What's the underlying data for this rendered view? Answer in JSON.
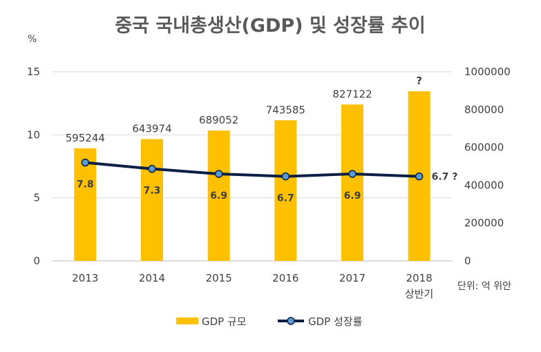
{
  "chart_data": {
    "type": "bar+line",
    "title": "중국 국내총생산(GDP) 및 성장률 추이",
    "left_axis_unit": "%",
    "right_axis_note": "단위: 억 위안",
    "categories": [
      {
        "year": "2013",
        "sub": ""
      },
      {
        "year": "2014",
        "sub": ""
      },
      {
        "year": "2015",
        "sub": ""
      },
      {
        "year": "2016",
        "sub": ""
      },
      {
        "year": "2017",
        "sub": ""
      },
      {
        "year": "2018",
        "sub": "상반기"
      }
    ],
    "left_axis": {
      "min": 0,
      "max": 15,
      "ticks": [
        "0",
        "5",
        "10",
        "15"
      ]
    },
    "right_axis": {
      "min": 0,
      "max": 1000000,
      "ticks": [
        "0",
        "200000",
        "400000",
        "600000",
        "800000",
        "1000000"
      ]
    },
    "series": [
      {
        "name": "GDP 규모",
        "kind": "bar",
        "axis": "right",
        "color": "#FFC000",
        "values": [
          595244,
          643974,
          689052,
          743585,
          827122,
          897000
        ],
        "labels": [
          "595244",
          "643974",
          "689052",
          "743585",
          "827122",
          "?"
        ]
      },
      {
        "name": "GDP 성장률",
        "kind": "line",
        "axis": "left",
        "color": "#0B1F44",
        "marker_color": "#5B9BD5",
        "values": [
          7.8,
          7.3,
          6.9,
          6.7,
          6.9,
          6.7
        ],
        "labels": [
          "7.8",
          "7.3",
          "6.9",
          "6.7",
          "6.9",
          "6.7 ?"
        ]
      }
    ],
    "legend_position": "bottom",
    "grid": true
  }
}
